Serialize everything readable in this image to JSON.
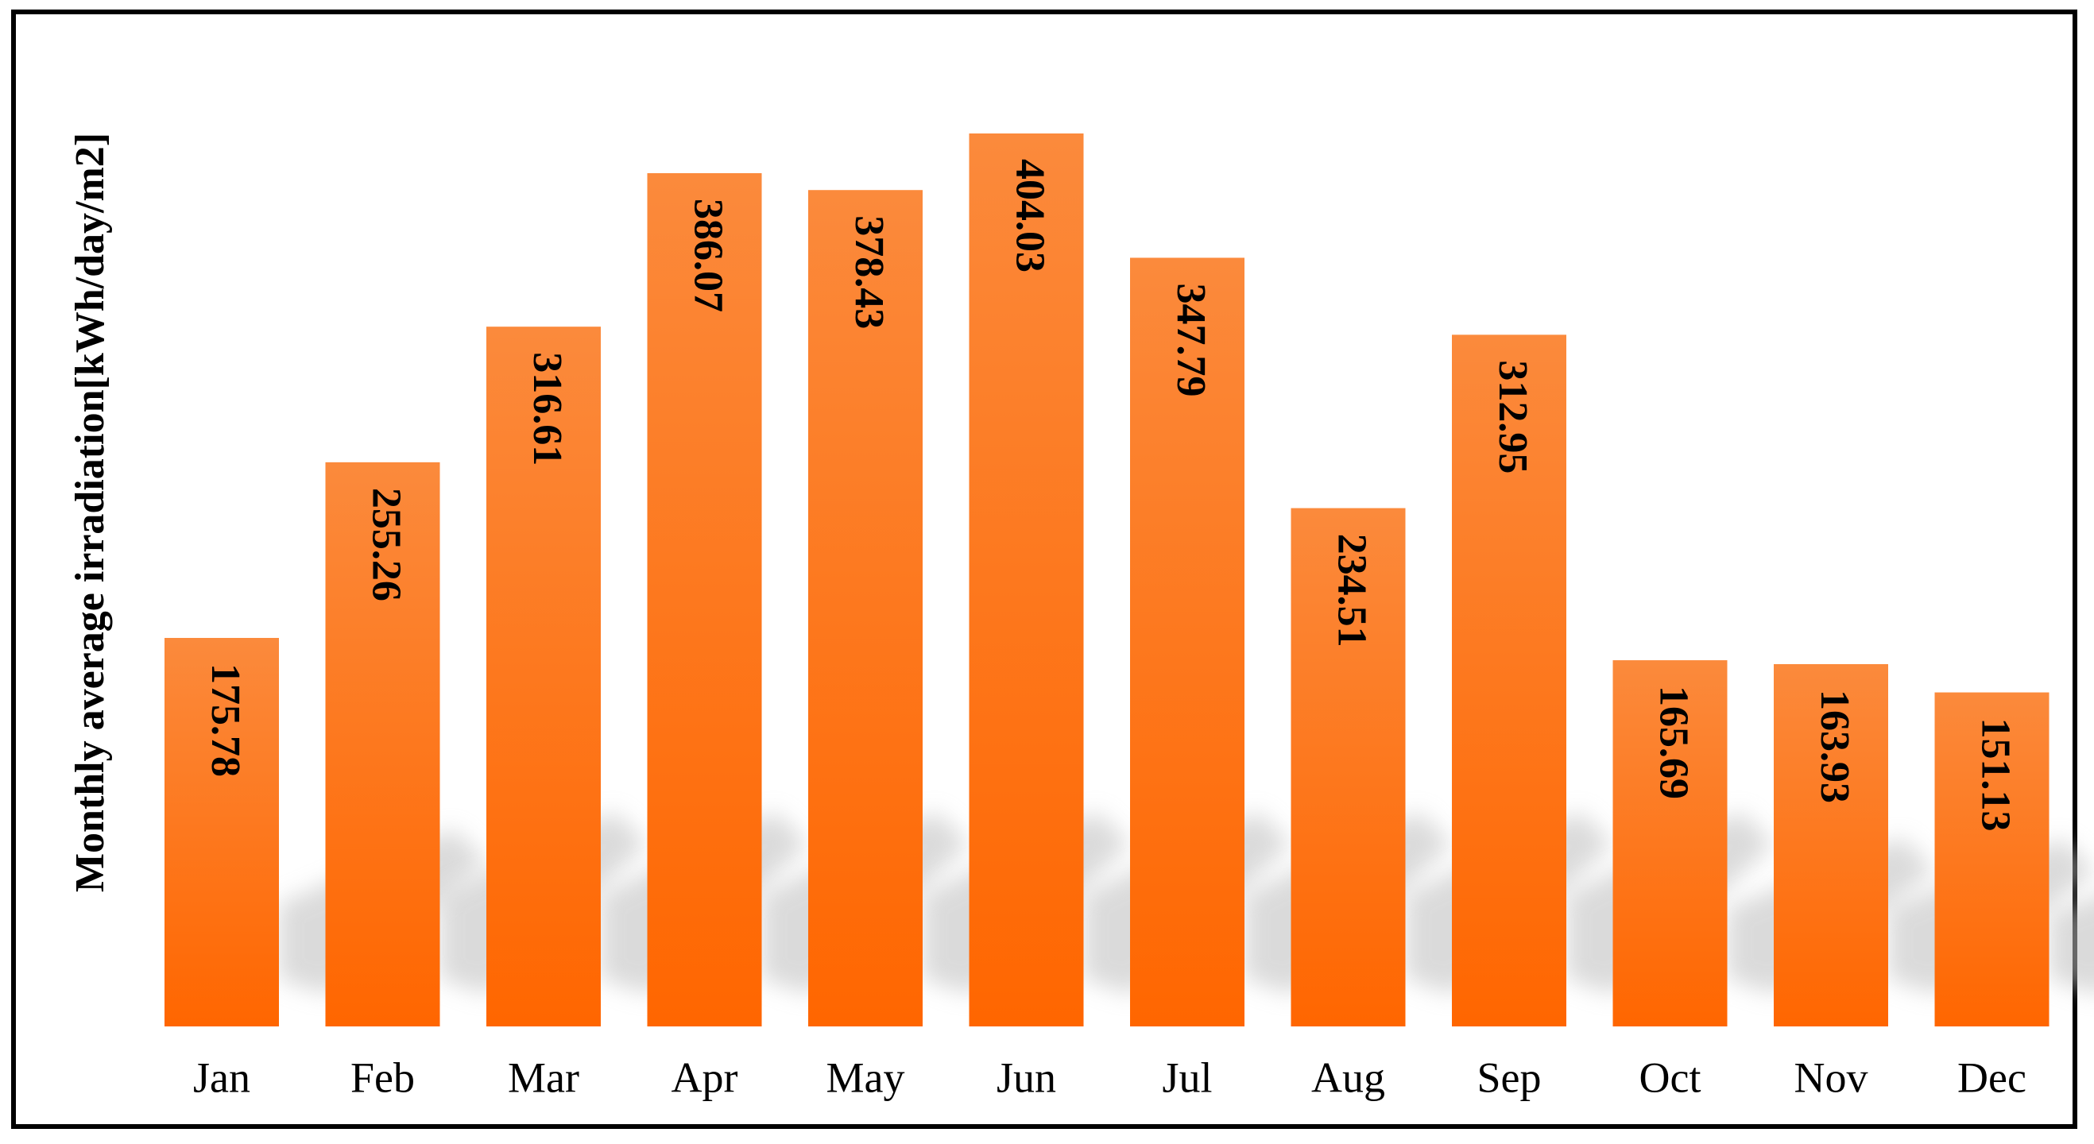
{
  "chart_data": {
    "type": "bar",
    "title": "",
    "xlabel": "",
    "ylabel": "Monthly  average irradiation[kWh/day/m2]",
    "categories": [
      "Jan",
      "Feb",
      "Mar",
      "Apr",
      "May",
      "Jun",
      "Jul",
      "Aug",
      "Sep",
      "Oct",
      "Nov",
      "Dec"
    ],
    "values": [
      175.78,
      255.26,
      316.61,
      386.07,
      378.43,
      404.03,
      347.79,
      234.51,
      312.95,
      165.69,
      163.93,
      151.13
    ],
    "data_labels": [
      "175.78",
      "255.26",
      "316.61",
      "386.07",
      "378.43",
      "404.03",
      "347.79",
      "234.51",
      "312.95",
      "165.69",
      "163.93",
      "151.13"
    ],
    "ylim": [
      0,
      404.03
    ],
    "grid": false,
    "legend": "none",
    "data_label_orientation": "rotated-90-clockwise",
    "bar_style": "gradient with drop shadow",
    "colors": {
      "bar_top": "#fb8a3c",
      "bar_bottom": "#ff6600",
      "shadow": "#bdbdbd",
      "frame": "#000000",
      "text": "#000000"
    }
  }
}
